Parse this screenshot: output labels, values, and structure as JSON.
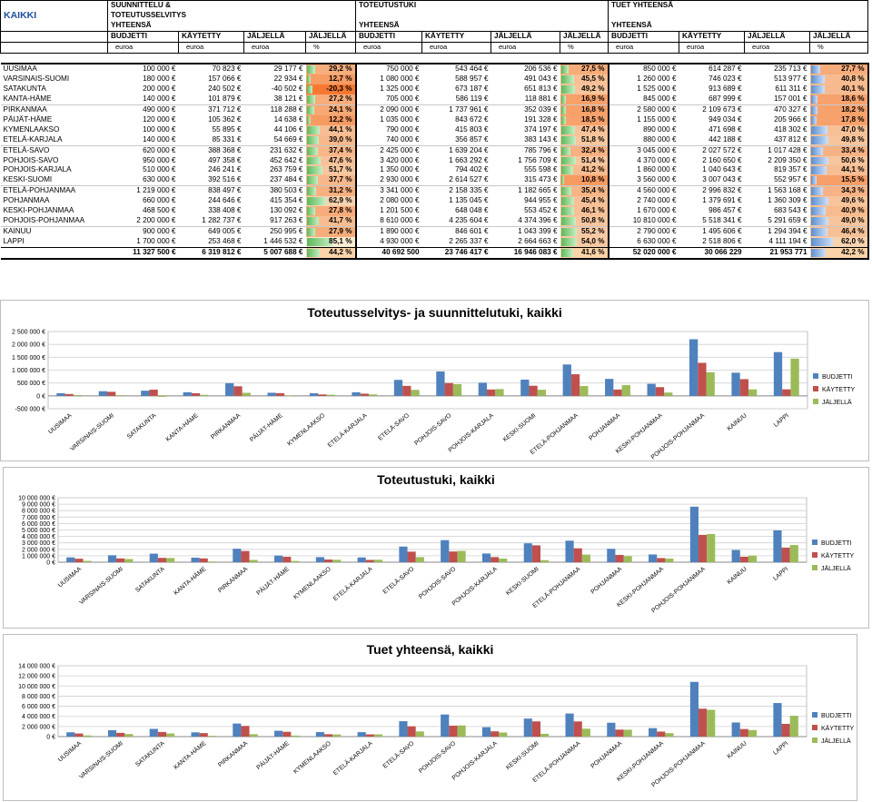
{
  "sheet": {
    "title": "KAIKKI",
    "groups": [
      {
        "line1": "SUUNNITTELU &",
        "line2": "TOTEUTUSSELVITYS",
        "line3": "YHTEENSÄ"
      },
      {
        "line1": "TOTEUTUSTUKI",
        "line2": "",
        "line3": "YHTEENSÄ"
      },
      {
        "line1": "TUET YHTEENSÄ",
        "line2": "",
        "line3": "YHTEENSÄ"
      }
    ],
    "col_headers": [
      "BUDJETTI",
      "KÄYTETTY",
      "JÄLJELLÄ",
      "JÄLJELLÄ"
    ],
    "units": [
      "euroa",
      "euroa",
      "euroa",
      "%"
    ],
    "rows": [
      {
        "name": "UUSIMAA",
        "v": [
          "100 000 €",
          "70 823 €",
          "29 177 €",
          "29,2 %",
          "750 000 €",
          "543 464 €",
          "206 536 €",
          "27,5 %",
          "850 000 €",
          "614 287 €",
          "235 713 €",
          "27,7 %"
        ],
        "p": [
          29.2,
          27.5,
          27.7
        ]
      },
      {
        "name": "VARSINAIS-SUOMI",
        "v": [
          "180 000 €",
          "157 066 €",
          "22 934 €",
          "12,7 %",
          "1 080 000 €",
          "588 957 €",
          "491 043 €",
          "45,5 %",
          "1 260 000 €",
          "746 023 €",
          "513 977 €",
          "40,8 %"
        ],
        "p": [
          12.7,
          45.5,
          40.8
        ]
      },
      {
        "name": "SATAKUNTA",
        "v": [
          "200 000 €",
          "240 502 €",
          "-40 502 €",
          "-20,3 %",
          "1 325 000 €",
          "673 187 €",
          "651 813 €",
          "49,2 %",
          "1 525 000 €",
          "913 689 €",
          "611 311 €",
          "40,1 %"
        ],
        "p": [
          -20.3,
          49.2,
          40.1
        ]
      },
      {
        "name": "KANTA-HÄME",
        "v": [
          "140 000 €",
          "101 879 €",
          "38 121 €",
          "27,2 %",
          "705 000 €",
          "586 119 €",
          "118 881 €",
          "16,9 %",
          "845 000 €",
          "687 999 €",
          "157 001 €",
          "18,6 %"
        ],
        "p": [
          27.2,
          16.9,
          18.6
        ]
      },
      {
        "name": "PIRKANMAA",
        "v": [
          "490 000 €",
          "371 712 €",
          "118 288 €",
          "24,1 %",
          "2 090 000 €",
          "1 737 961 €",
          "352 039 €",
          "16,8 %",
          "2 580 000 €",
          "2 109 673 €",
          "470 327 €",
          "18,2 %"
        ],
        "p": [
          24.1,
          16.8,
          18.2
        ]
      },
      {
        "name": "PÄIJÄT-HÄME",
        "v": [
          "120 000 €",
          "105 362 €",
          "14 638 €",
          "12,2 %",
          "1 035 000 €",
          "843 672 €",
          "191 328 €",
          "18,5 %",
          "1 155 000 €",
          "949 034 €",
          "205 966 €",
          "17,8 %"
        ],
        "p": [
          12.2,
          18.5,
          17.8
        ]
      },
      {
        "name": "KYMENLAAKSO",
        "v": [
          "100 000 €",
          "55 895 €",
          "44 106 €",
          "44,1 %",
          "790 000 €",
          "415 803 €",
          "374 197 €",
          "47,4 %",
          "890 000 €",
          "471 698 €",
          "418 302 €",
          "47,0 %"
        ],
        "p": [
          44.1,
          47.4,
          47.0
        ]
      },
      {
        "name": "ETELÄ-KARJALA",
        "v": [
          "140 000 €",
          "85 331 €",
          "54 669 €",
          "39,0 %",
          "740 000 €",
          "356 857 €",
          "383 143 €",
          "51,8 %",
          "880 000 €",
          "442 188 €",
          "437 812 €",
          "49,8 %"
        ],
        "p": [
          39.0,
          51.8,
          49.8
        ]
      },
      {
        "name": "ETELÄ-SAVO",
        "v": [
          "620 000 €",
          "388 368 €",
          "231 632 €",
          "37,4 %",
          "2 425 000 €",
          "1 639 204 €",
          "785 796 €",
          "32,4 %",
          "3 045 000 €",
          "2 027 572 €",
          "1 017 428 €",
          "33,4 %"
        ],
        "p": [
          37.4,
          32.4,
          33.4
        ]
      },
      {
        "name": "POHJOIS-SAVO",
        "v": [
          "950 000 €",
          "497 358 €",
          "452 642 €",
          "47,6 %",
          "3 420 000 €",
          "1 663 292 €",
          "1 756 709 €",
          "51,4 %",
          "4 370 000 €",
          "2 160 650 €",
          "2 209 350 €",
          "50,6 %"
        ],
        "p": [
          47.6,
          51.4,
          50.6
        ]
      },
      {
        "name": "POHJOIS-KARJALA",
        "v": [
          "510 000 €",
          "246 241 €",
          "263 759 €",
          "51,7 %",
          "1 350 000 €",
          "794 402 €",
          "555 598 €",
          "41,2 %",
          "1 860 000 €",
          "1 040 643 €",
          "819 357 €",
          "44,1 %"
        ],
        "p": [
          51.7,
          41.2,
          44.1
        ]
      },
      {
        "name": "KESKI-SUOMI",
        "v": [
          "630 000 €",
          "392 516 €",
          "237 484 €",
          "37,7 %",
          "2 930 000 €",
          "2 614 527 €",
          "315 473 €",
          "10,8 %",
          "3 560 000 €",
          "3 007 043 €",
          "552 957 €",
          "15,5 %"
        ],
        "p": [
          37.7,
          10.8,
          15.5
        ]
      },
      {
        "name": "ETELÄ-POHJANMAA",
        "v": [
          "1 219 000 €",
          "838 497 €",
          "380 503 €",
          "31,2 %",
          "3 341 000 €",
          "2 158 335 €",
          "1 182 665 €",
          "35,4 %",
          "4 560 000 €",
          "2 996 832 €",
          "1 563 168 €",
          "34,3 %"
        ],
        "p": [
          31.2,
          35.4,
          34.3
        ]
      },
      {
        "name": "POHJANMAA",
        "v": [
          "660 000 €",
          "244 646 €",
          "415 354 €",
          "62,9 %",
          "2 080 000 €",
          "1 135 045 €",
          "944 955 €",
          "45,4 %",
          "2 740 000 €",
          "1 379 691 €",
          "1 360 309 €",
          "49,6 %"
        ],
        "p": [
          62.9,
          45.4,
          49.6
        ]
      },
      {
        "name": "KESKI-POHJANMAA",
        "v": [
          "468 500 €",
          "338 408 €",
          "130 092 €",
          "27,8 %",
          "1 201 500 €",
          "648 048 €",
          "553 452 €",
          "46,1 %",
          "1 670 000 €",
          "986 457 €",
          "683 543 €",
          "40,9 %"
        ],
        "p": [
          27.8,
          46.1,
          40.9
        ]
      },
      {
        "name": "POHJOIS-POHJANMAA",
        "v": [
          "2 200 000 €",
          "1 282 737 €",
          "917 263 €",
          "41,7 %",
          "8 610 000 €",
          "4 235 604 €",
          "4 374 396 €",
          "50,8 %",
          "10 810 000 €",
          "5 518 341 €",
          "5 291 659 €",
          "49,0 %"
        ],
        "p": [
          41.7,
          50.8,
          49.0
        ]
      },
      {
        "name": "KAINUU",
        "v": [
          "900 000 €",
          "649 005 €",
          "250 995 €",
          "27,9 %",
          "1 890 000 €",
          "846 601 €",
          "1 043 399 €",
          "55,2 %",
          "2 790 000 €",
          "1 495 606 €",
          "1 294 394 €",
          "46,4 %"
        ],
        "p": [
          27.9,
          55.2,
          46.4
        ]
      },
      {
        "name": "LAPPI",
        "v": [
          "1 700 000 €",
          "253 468 €",
          "1 446 532 €",
          "85,1 %",
          "4 930 000 €",
          "2 265 337 €",
          "2 664 663 €",
          "54,0 %",
          "6 630 000 €",
          "2 518 806 €",
          "4 111 194 €",
          "62,0 %"
        ],
        "p": [
          85.1,
          54.0,
          62.0
        ]
      }
    ],
    "total": {
      "v": [
        "11 327 500 €",
        "6 319 812 €",
        "5 007 688 €",
        "44,2 %",
        "40 692 500",
        "23 746 417 €",
        "16 946 083 €",
        "41,6 %",
        "52 020 000 €",
        "30 066 229",
        "21 953 771",
        "42,2 %"
      ],
      "p": [
        44.2,
        41.6,
        42.2
      ]
    }
  },
  "chart_data": [
    {
      "type": "bar",
      "title": "Toteutusselvitys- ja suunnittelutuki, kaikki",
      "categories": [
        "UUSIMAA",
        "VARSINAIS-SUOMI",
        "SATAKUNTA",
        "KANTA-HÄME",
        "PIRKANMAA",
        "PÄIJÄT-HÄME",
        "KYMENLAAKSO",
        "ETELÄ-KARJALA",
        "ETELÄ-SAVO",
        "POHJOIS-SAVO",
        "POHJOIS-KARJALA",
        "KESKI-SUOMI",
        "ETELÄ-POHJANMAA",
        "POHJANMAA",
        "KESKI-POHJANMAA",
        "POHJOIS-POHJANMAA",
        "KAINUU",
        "LAPPI"
      ],
      "series": [
        {
          "name": "BUDJETTI",
          "values": [
            100000,
            180000,
            200000,
            140000,
            490000,
            120000,
            100000,
            140000,
            620000,
            950000,
            510000,
            630000,
            1219000,
            660000,
            468500,
            2200000,
            900000,
            1700000
          ]
        },
        {
          "name": "KÄYTETTY",
          "values": [
            70823,
            157066,
            240502,
            101879,
            371712,
            105362,
            55895,
            85331,
            388368,
            497358,
            246241,
            392516,
            838497,
            244646,
            338408,
            1282737,
            649005,
            253468
          ]
        },
        {
          "name": "JÄLJELLÄ",
          "values": [
            29177,
            22934,
            -40502,
            38121,
            118288,
            14638,
            44106,
            54669,
            231632,
            452642,
            263759,
            237484,
            380503,
            415354,
            130092,
            917263,
            250995,
            1446532
          ]
        }
      ],
      "ylim": [
        -500000,
        2500000
      ],
      "yticks": [
        "-500 000 €",
        "0 €",
        "500 000 €",
        "1 000 000 €",
        "1 500 000 €",
        "2 000 000 €",
        "2 500 000 €"
      ],
      "ytick_values": [
        -500000,
        0,
        500000,
        1000000,
        1500000,
        2000000,
        2500000
      ],
      "grid": true,
      "legend": "right"
    },
    {
      "type": "bar",
      "title": "Toteutustuki, kaikki",
      "categories": [
        "UUSIMAA",
        "VARSINAIS-SUOMI",
        "SATAKUNTA",
        "KANTA-HÄME",
        "PIRKANMAA",
        "PÄIJÄT-HÄME",
        "KYMENLAAKSO",
        "ETELÄ-KARJALA",
        "ETELÄ-SAVO",
        "POHJOIS-SAVO",
        "POHJOIS-KARJALA",
        "KESKI-SUOMI",
        "ETELÄ-POHJANMAA",
        "POHJANMAA",
        "KESKI-POHJANMAA",
        "POHJOIS-POHJANMAA",
        "KAINUU",
        "LAPPI"
      ],
      "series": [
        {
          "name": "BUDJETTI",
          "values": [
            750000,
            1080000,
            1325000,
            705000,
            2090000,
            1035000,
            790000,
            740000,
            2425000,
            3420000,
            1350000,
            2930000,
            3341000,
            2080000,
            1201500,
            8610000,
            1890000,
            4930000
          ]
        },
        {
          "name": "KÄYTETTY",
          "values": [
            543464,
            588957,
            673187,
            586119,
            1737961,
            843672,
            415803,
            356857,
            1639204,
            1663292,
            794402,
            2614527,
            2158335,
            1135045,
            648048,
            4235604,
            846601,
            2265337
          ]
        },
        {
          "name": "JÄLJELLÄ",
          "values": [
            206536,
            491043,
            651813,
            118881,
            352039,
            191328,
            374197,
            383143,
            785796,
            1756709,
            555598,
            315473,
            1182665,
            944955,
            553452,
            4374396,
            1043399,
            2664663
          ]
        }
      ],
      "ylim": [
        0,
        10000000
      ],
      "yticks": [
        "0 €",
        "1 000 000 €",
        "2 000 000 €",
        "3 000 000 €",
        "4 000 000 €",
        "5 000 000 €",
        "6 000 000 €",
        "7 000 000 €",
        "8 000 000 €",
        "9 000 000 €",
        "10 000 000 €"
      ],
      "ytick_values": [
        0,
        1000000,
        2000000,
        3000000,
        4000000,
        5000000,
        6000000,
        7000000,
        8000000,
        9000000,
        10000000
      ],
      "grid": true,
      "legend": "right"
    },
    {
      "type": "bar",
      "title": "Tuet yhteensä, kaikki",
      "categories": [
        "UUSIMAA",
        "VARSINAIS-SUOMI",
        "SATAKUNTA",
        "KANTA-HÄME",
        "PIRKANMAA",
        "PÄIJÄT-HÄME",
        "KYMENLAAKSO",
        "ETELÄ-KARJALA",
        "ETELÄ-SAVO",
        "POHJOIS-SAVO",
        "POHJOIS-KARJALA",
        "KESKI-SUOMI",
        "ETELÄ-POHJANMAA",
        "POHJANMAA",
        "KESKI-POHJANMAA",
        "POHJOIS-POHJANMAA",
        "KAINUU",
        "LAPPI"
      ],
      "series": [
        {
          "name": "BUDJETTI",
          "values": [
            850000,
            1260000,
            1525000,
            845000,
            2580000,
            1155000,
            890000,
            880000,
            3045000,
            4370000,
            1860000,
            3560000,
            4560000,
            2740000,
            1670000,
            10810000,
            2790000,
            6630000
          ]
        },
        {
          "name": "KÄYTETTY",
          "values": [
            614287,
            746023,
            913689,
            687999,
            2109673,
            949034,
            471698,
            442188,
            2027572,
            2160650,
            1040643,
            3007043,
            2996832,
            1379691,
            986457,
            5518341,
            1495606,
            2518806
          ]
        },
        {
          "name": "JÄLJELLÄ",
          "values": [
            235713,
            513977,
            611311,
            157001,
            470327,
            205966,
            418302,
            437812,
            1017428,
            2209350,
            819357,
            552957,
            1563168,
            1360309,
            683543,
            5291659,
            1294394,
            4111194
          ]
        }
      ],
      "ylim": [
        0,
        14000000
      ],
      "yticks": [
        "0 €",
        "2 000 000 €",
        "4 000 000 €",
        "6 000 000 €",
        "8 000 000 €",
        "10 000 000 €",
        "12 000 000 €",
        "14 000 000 €"
      ],
      "ytick_values": [
        0,
        2000000,
        4000000,
        6000000,
        8000000,
        10000000,
        12000000,
        14000000
      ],
      "grid": true,
      "legend": "right"
    }
  ],
  "colors": {
    "budjetti": "#4f81bd",
    "kaytetty": "#c0504d",
    "jaljella": "#9bbb59",
    "heat_high": "#f79646",
    "heat_low": "#fde3c8",
    "accent_title": "#1f4e9a"
  }
}
